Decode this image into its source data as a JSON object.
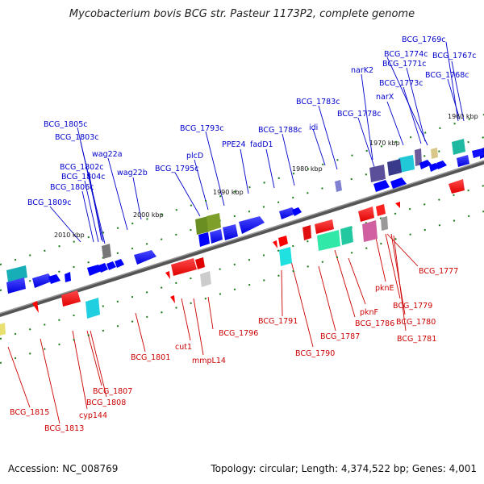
{
  "title": "Mycobacterium bovis BCG str. Pasteur 1173P2, complete genome",
  "footer": {
    "accession": "Accession: NC_008769",
    "topology": "Topology: circular; Length: 4,374,522 bp; Genes: 4,001"
  },
  "colors": {
    "forward_gene": "#0000ff",
    "reverse_gene": "#ff0000",
    "forward_label": "#0000cc",
    "reverse_label": "#cc0000"
  },
  "ticks": [
    {
      "text": "1960 kbp"
    },
    {
      "text": "1970 kbp"
    },
    {
      "text": "1980 kbp"
    },
    {
      "text": "1990 kbp"
    },
    {
      "text": "2000 kbp"
    },
    {
      "text": "2010 kbp"
    }
  ],
  "forward_labels": [
    {
      "text": "BCG_1769c"
    },
    {
      "text": "BCG_1774c"
    },
    {
      "text": "BCG_1767c"
    },
    {
      "text": "BCG_1771c"
    },
    {
      "text": "narK2"
    },
    {
      "text": "BCG_1768c"
    },
    {
      "text": "BCG_1773c"
    },
    {
      "text": "narX"
    },
    {
      "text": "BCG_1783c"
    },
    {
      "text": "BCG_1778c"
    },
    {
      "text": "BCG_1805c"
    },
    {
      "text": "BCG_1793c"
    },
    {
      "text": "BCG_1788c"
    },
    {
      "text": "idi"
    },
    {
      "text": "BCG_1803c"
    },
    {
      "text": "PPE24"
    },
    {
      "text": "fadD1"
    },
    {
      "text": "plcD"
    },
    {
      "text": "wag22a"
    },
    {
      "text": "BCG_1802c"
    },
    {
      "text": "BCG_1795c"
    },
    {
      "text": "wag22b"
    },
    {
      "text": "BCG_1804c"
    },
    {
      "text": "BCG_1806c"
    },
    {
      "text": "BCG_1809c"
    }
  ],
  "reverse_labels": [
    {
      "text": "BCG_1777"
    },
    {
      "text": "pknE"
    },
    {
      "text": "BCG_1779"
    },
    {
      "text": "pknF"
    },
    {
      "text": "BCG_1780"
    },
    {
      "text": "BCG_1791"
    },
    {
      "text": "BCG_1786"
    },
    {
      "text": "BCG_1781"
    },
    {
      "text": "BCG_1796"
    },
    {
      "text": "BCG_1787"
    },
    {
      "text": "cut1"
    },
    {
      "text": "BCG_1790"
    },
    {
      "text": "BCG_1801"
    },
    {
      "text": "mmpL14"
    },
    {
      "text": "BCG_1807"
    },
    {
      "text": "BCG_1808"
    },
    {
      "text": "BCG_1815"
    },
    {
      "text": "cyp144"
    },
    {
      "text": "BCG_1813"
    }
  ]
}
